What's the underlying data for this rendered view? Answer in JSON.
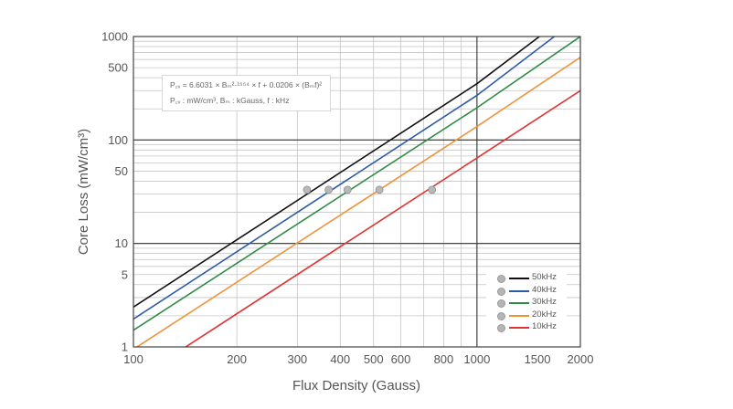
{
  "chart_data": {
    "type": "line",
    "x_scale": "log",
    "y_scale": "log",
    "xlabel": "Flux Density (Gauss)",
    "ylabel": "Core Loss (mW/cm³)",
    "xlim": [
      100,
      2000
    ],
    "ylim": [
      1,
      1000
    ],
    "x_ticks": [
      "100",
      "200",
      "300",
      "400",
      "500",
      "600",
      "800",
      "1000",
      "1500",
      "2000"
    ],
    "x_tick_values": [
      100,
      200,
      300,
      400,
      500,
      600,
      800,
      1000,
      1500,
      2000
    ],
    "y_ticks": [
      "1",
      "5",
      "10",
      "50",
      "100",
      "500",
      "1000"
    ],
    "y_tick_values": [
      1,
      5,
      10,
      50,
      100,
      500,
      1000
    ],
    "grid": true,
    "legend_position": "bottom-right",
    "annotation": {
      "line1": "P꜀ᵥ = 6.6031 × Bₘ²·¹⁵⁵⁴ × f + 0.0206 × (Bₘf)²",
      "line2": "P꜀ᵥ : mW/cm³,  Bₘ : kGauss,  f : kHz"
    },
    "series": [
      {
        "name": "50kHz",
        "color": "#111111",
        "x": [
          100,
          1000,
          1520
        ],
        "y": [
          2.43,
          350,
          1000
        ]
      },
      {
        "name": "40kHz",
        "color": "#2e5aa8",
        "x": [
          100,
          1000,
          1680
        ],
        "y": [
          1.86,
          270,
          1000
        ]
      },
      {
        "name": "30kHz",
        "color": "#2e8b45",
        "x": [
          100,
          1000,
          2000
        ],
        "y": [
          1.45,
          205,
          1000
        ]
      },
      {
        "name": "20kHz",
        "color": "#f0923a",
        "x": [
          100,
          1000,
          2000
        ],
        "y": [
          0.95,
          135,
          630
        ]
      },
      {
        "name": "10kHz",
        "color": "#e03333",
        "x": [
          100,
          1000,
          2000
        ],
        "y": [
          0.47,
          67,
          300
        ]
      }
    ],
    "markers": [
      {
        "series": "50kHz",
        "x": 320,
        "y": 33
      },
      {
        "series": "40kHz",
        "x": 370,
        "y": 33
      },
      {
        "series": "30kHz",
        "x": 420,
        "y": 33
      },
      {
        "series": "20kHz",
        "x": 520,
        "y": 33
      },
      {
        "series": "10kHz",
        "x": 740,
        "y": 33
      }
    ]
  }
}
